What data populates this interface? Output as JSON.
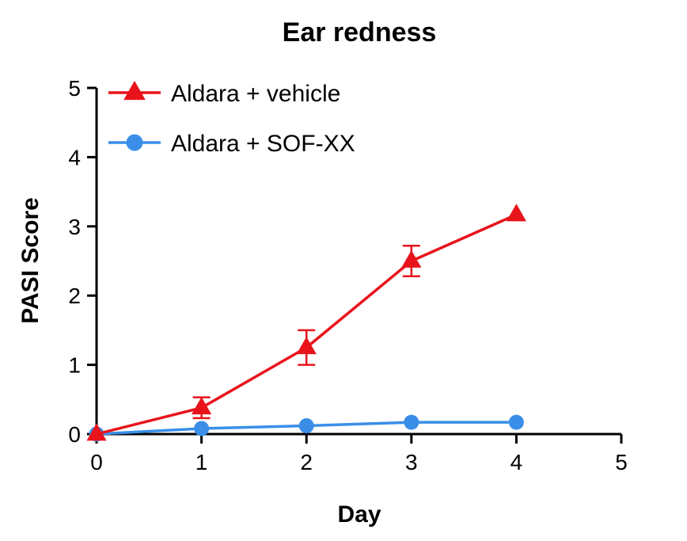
{
  "chart_data": {
    "type": "line",
    "title": "Ear redness",
    "xlabel": "Day",
    "ylabel": "PASI Score",
    "xlim": [
      0,
      5
    ],
    "ylim": [
      0,
      5
    ],
    "xticks": [
      "0",
      "1",
      "2",
      "3",
      "4",
      "5"
    ],
    "yticks": [
      "0",
      "1",
      "2",
      "3",
      "4",
      "5"
    ],
    "grid": false,
    "legend_position": "top-left",
    "series": [
      {
        "name": "Aldara + vehicle",
        "color": "#e8131b",
        "marker": "triangle",
        "x": [
          0,
          1,
          2,
          3,
          4
        ],
        "y": [
          0,
          0.38,
          1.25,
          2.5,
          3.17
        ],
        "error": [
          0,
          0.15,
          0.25,
          0.22,
          0
        ]
      },
      {
        "name": "Aldara + SOF-XX",
        "color": "#3a8ee8",
        "marker": "circle",
        "x": [
          0,
          1,
          2,
          3,
          4
        ],
        "y": [
          0,
          0.08,
          0.12,
          0.17,
          0.17
        ],
        "error": [
          0,
          0,
          0,
          0,
          0
        ]
      }
    ]
  }
}
